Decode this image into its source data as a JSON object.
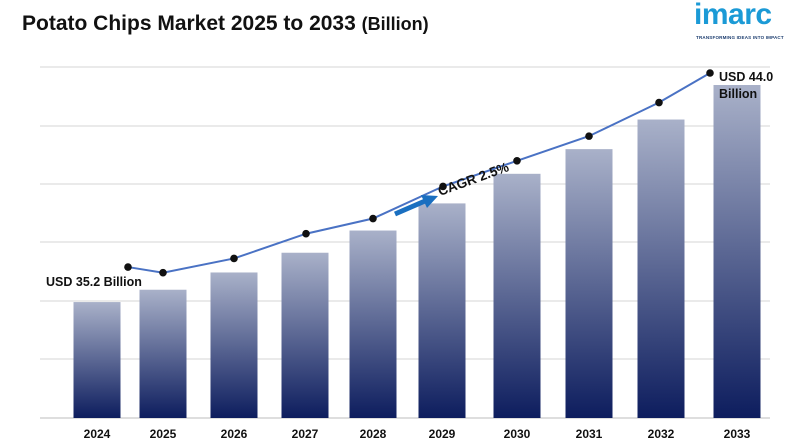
{
  "title": {
    "main": "Potato Chips Market 2025 to 2033",
    "unit": "(Billion)"
  },
  "logo": {
    "word": "imarc",
    "tagline": "TRANSFORMING IDEAS INTO IMPACT",
    "color": "#1b9ad6"
  },
  "chart_data": {
    "type": "bar",
    "categories": [
      "2024",
      "2025",
      "2026",
      "2027",
      "2028",
      "2029",
      "2030",
      "2031",
      "2032",
      "2033"
    ],
    "values": [
      35.2,
      35.7,
      36.4,
      37.2,
      38.1,
      39.2,
      40.4,
      41.4,
      42.6,
      44.0
    ],
    "ylim": [
      30.5,
      45.5
    ],
    "grid": true,
    "trend_line": true,
    "annotations": {
      "start": "USD 35.2 Billion",
      "end_line1": "USD 44.0",
      "end_line2": "Billion",
      "cagr": "CAGR 2.5%"
    },
    "colors": {
      "bar_top": "#a9b1c9",
      "bar_bottom": "#0d1d5e",
      "line": "#4a72c4",
      "marker": "#111111",
      "arrow": "#1a6fc0",
      "grid": "#d4d4d4"
    }
  }
}
